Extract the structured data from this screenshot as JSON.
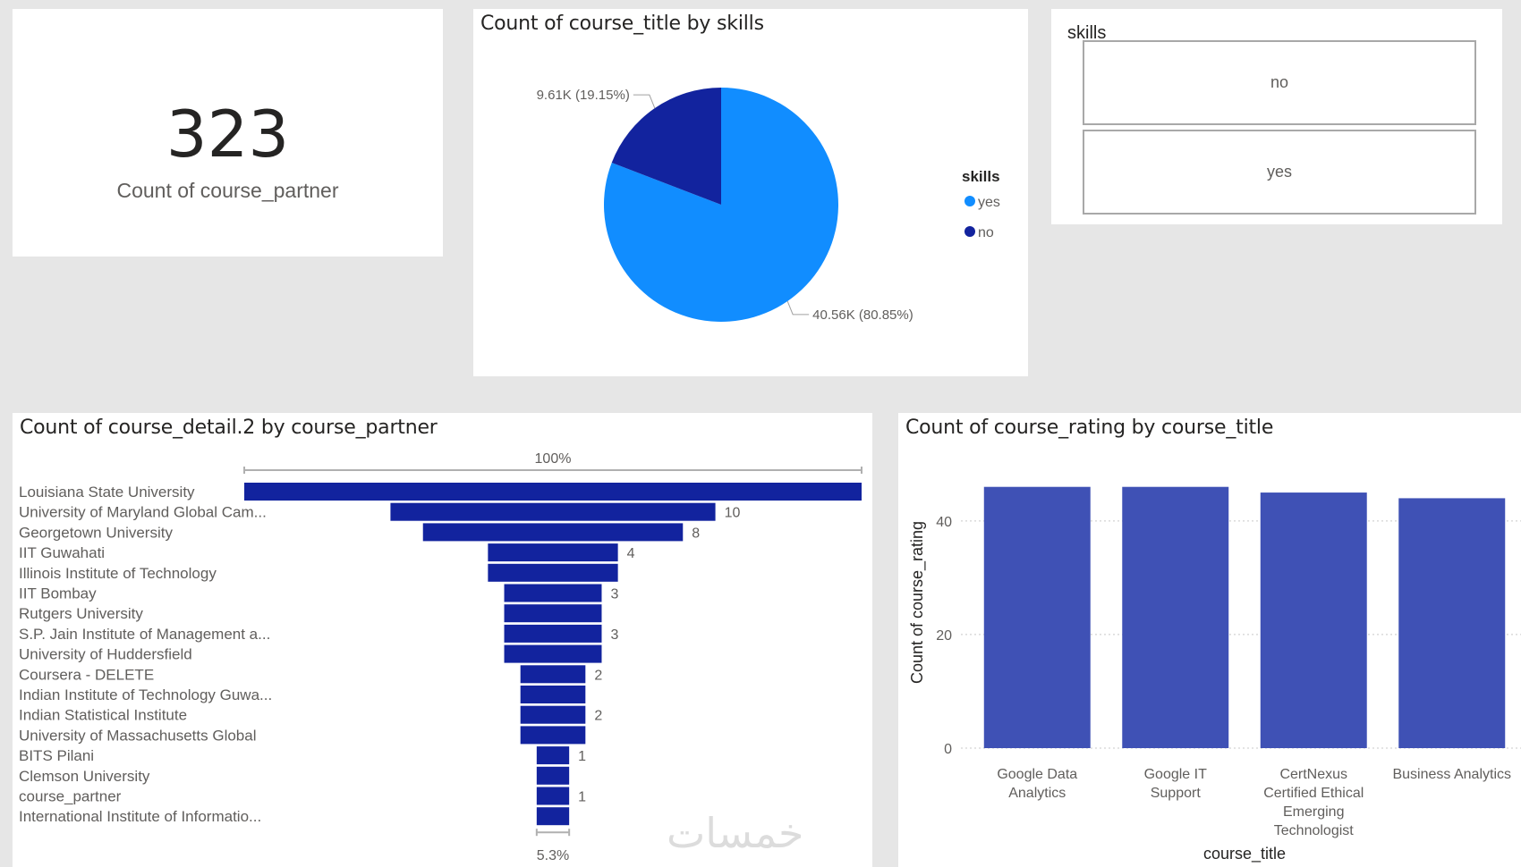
{
  "kpi": {
    "value": "323",
    "label": "Count of course_partner"
  },
  "pie": {
    "title": "Count of course_title by skills",
    "legend_title": "skills",
    "slices": [
      {
        "name": "yes",
        "value": 40560,
        "percent": 80.85,
        "label": "40.56K (80.85%)",
        "color": "#118dff"
      },
      {
        "name": "no",
        "value": 9610,
        "percent": 19.15,
        "label": "9.61K (19.15%)",
        "color": "#12239e"
      }
    ]
  },
  "slicer": {
    "title": "skills",
    "options": [
      "no",
      "yes"
    ]
  },
  "funnel": {
    "title": "Count of course_detail.2 by course_partner",
    "top_label": "100%",
    "bottom_label": "5.3%",
    "color": "#12239e",
    "categories": [
      {
        "name": "Louisiana State University",
        "value": 19,
        "label": ""
      },
      {
        "name": "University of Maryland Global Cam...",
        "value": 10,
        "label": "10"
      },
      {
        "name": "Georgetown University",
        "value": 8,
        "label": "8"
      },
      {
        "name": "IIT Guwahati",
        "value": 4,
        "label": "4"
      },
      {
        "name": "Illinois Institute of Technology",
        "value": 4,
        "label": ""
      },
      {
        "name": "IIT Bombay",
        "value": 3,
        "label": "3"
      },
      {
        "name": "Rutgers University",
        "value": 3,
        "label": ""
      },
      {
        "name": "S.P. Jain Institute of Management a...",
        "value": 3,
        "label": "3"
      },
      {
        "name": "University of Huddersfield",
        "value": 3,
        "label": ""
      },
      {
        "name": "Coursera - DELETE",
        "value": 2,
        "label": "2"
      },
      {
        "name": "Indian Institute of Technology Guwa...",
        "value": 2,
        "label": ""
      },
      {
        "name": "Indian Statistical Institute",
        "value": 2,
        "label": "2"
      },
      {
        "name": "University of Massachusetts Global",
        "value": 2,
        "label": ""
      },
      {
        "name": "BITS Pilani",
        "value": 1,
        "label": "1"
      },
      {
        "name": "Clemson University",
        "value": 1,
        "label": ""
      },
      {
        "name": "course_partner",
        "value": 1,
        "label": "1"
      },
      {
        "name": "International Institute of Informatio...",
        "value": 1,
        "label": ""
      }
    ]
  },
  "chart_data": {
    "type": "bar",
    "title": "Count of course_rating by course_title",
    "xlabel": "course_title",
    "ylabel": "Count of course_rating",
    "categories": [
      [
        "Google Data",
        "Analytics"
      ],
      [
        "Google IT",
        "Support"
      ],
      [
        "CertNexus",
        "Certified Ethical",
        "Emerging",
        "Technologist"
      ],
      [
        "Business Analytics"
      ]
    ],
    "values": [
      46,
      46,
      45,
      44
    ],
    "yticks": [
      0,
      20,
      40
    ],
    "ylim": [
      0,
      48
    ],
    "color": "#3f51b5",
    "grid": true
  },
  "watermark": "خمسات"
}
